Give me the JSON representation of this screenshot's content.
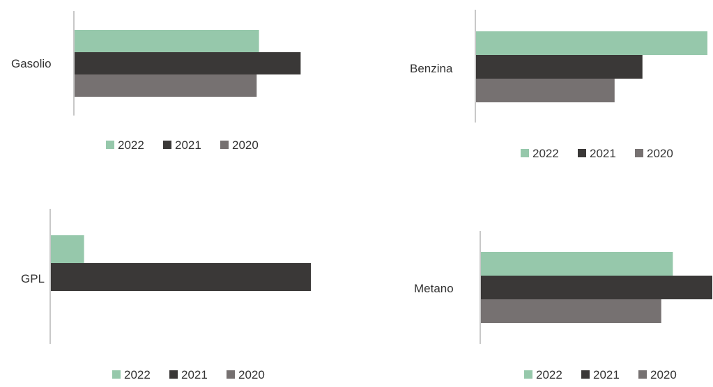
{
  "colors": {
    "2022": "#96c8ab",
    "2021": "#3a3837",
    "2020": "#767171"
  },
  "chart_data": [
    {
      "type": "bar",
      "orientation": "horizontal",
      "categories": [
        "Gasolio"
      ],
      "series": [
        {
          "name": "2022",
          "values": [
            0.8
          ]
        },
        {
          "name": "2021",
          "values": [
            0.98
          ]
        },
        {
          "name": "2020",
          "values": [
            0.79
          ]
        }
      ],
      "xlim": [
        0,
        1
      ],
      "grid": false,
      "legend": "bottom"
    },
    {
      "type": "bar",
      "orientation": "horizontal",
      "categories": [
        "Benzina"
      ],
      "series": [
        {
          "name": "2022",
          "values": [
            1.0
          ]
        },
        {
          "name": "2021",
          "values": [
            0.72
          ]
        },
        {
          "name": "2020",
          "values": [
            0.6
          ]
        }
      ],
      "xlim": [
        0,
        1
      ],
      "grid": false,
      "legend": "bottom"
    },
    {
      "type": "bar",
      "orientation": "horizontal",
      "categories": [
        "GPL"
      ],
      "series": [
        {
          "name": "2022",
          "values": [
            0.13
          ]
        },
        {
          "name": "2021",
          "values": [
            1.0
          ]
        },
        {
          "name": "2020",
          "values": [
            0.0
          ]
        }
      ],
      "xlim": [
        0,
        1
      ],
      "grid": false,
      "legend": "bottom"
    },
    {
      "type": "bar",
      "orientation": "horizontal",
      "categories": [
        "Metano"
      ],
      "series": [
        {
          "name": "2022",
          "values": [
            0.83
          ]
        },
        {
          "name": "2021",
          "values": [
            1.0
          ]
        },
        {
          "name": "2020",
          "values": [
            0.78
          ]
        }
      ],
      "xlim": [
        0,
        1
      ],
      "grid": false,
      "legend": "bottom"
    }
  ]
}
